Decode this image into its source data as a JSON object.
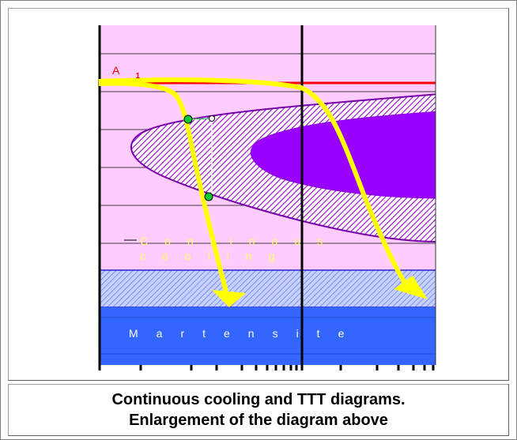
{
  "diagram": {
    "curve_label": "A",
    "curve_label_subscript": "1",
    "cooling_label_line1": "Continous",
    "cooling_label_line2": "cooling",
    "martensite_label": "Martensite"
  },
  "caption": {
    "line1": "Continuous cooling and TTT diagrams.",
    "line2": "Enlargement of the diagram above"
  },
  "colors": {
    "background": "#ffccff",
    "a1_line": "#ff0000",
    "transformation_start": "#9900cc",
    "transformation_finish": "#9900ff",
    "cooling_curve": "#ffff00",
    "martensite_band": "#3366ff",
    "martensite_hatch": "#99aaff",
    "marker_point": "#00cc33"
  }
}
